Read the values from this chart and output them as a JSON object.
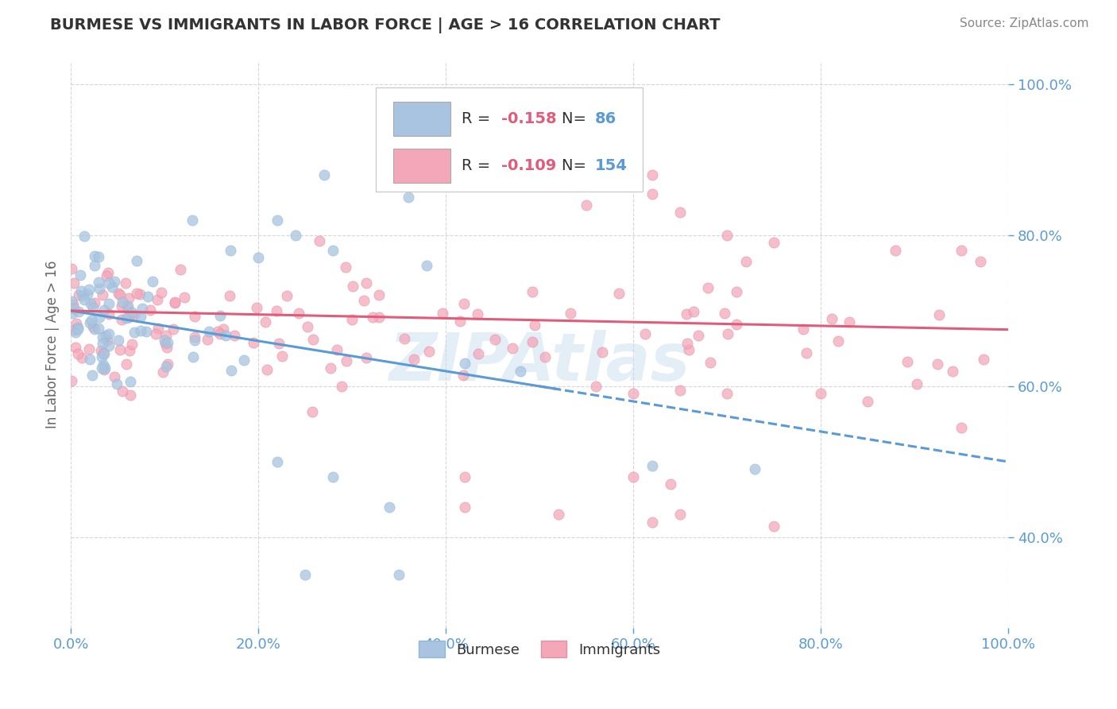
{
  "title": "BURMESE VS IMMIGRANTS IN LABOR FORCE | AGE > 16 CORRELATION CHART",
  "source_text": "Source: ZipAtlas.com",
  "ylabel": "In Labor Force | Age > 16",
  "R_burmese": "-0.158",
  "N_burmese": "86",
  "R_immigrants": "-0.109",
  "N_immigrants": "154",
  "xlim": [
    0.0,
    1.0
  ],
  "ylim": [
    0.28,
    1.03
  ],
  "xticks": [
    0.0,
    0.2,
    0.4,
    0.6,
    0.8,
    1.0
  ],
  "xticklabels": [
    "0.0%",
    "20.0%",
    "40.0%",
    "60.0%",
    "80.0%",
    "100.0%"
  ],
  "yticks": [
    0.4,
    0.6,
    0.8,
    1.0
  ],
  "yticklabels": [
    "40.0%",
    "60.0%",
    "80.0%",
    "100.0%"
  ],
  "bg_color": "#ffffff",
  "grid_color": "#cccccc",
  "burmese_scatter_color": "#a8c4e0",
  "burmese_line_color": "#5b9bd5",
  "immigrants_scatter_color": "#f4a7b9",
  "immigrants_line_color": "#e05c7a",
  "title_color": "#333333",
  "source_color": "#888888",
  "tick_color": "#5b9bd5",
  "legend_R_color": "#e05c7a",
  "legend_N_color": "#5b9bd5",
  "watermark_color": "#c8dff0",
  "watermark_text": "ZIPAtlas"
}
